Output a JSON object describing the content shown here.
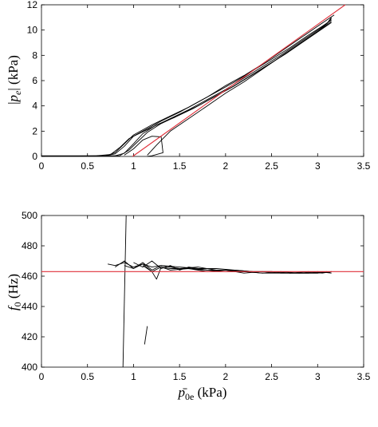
{
  "chart_data": [
    {
      "type": "line",
      "xlabel": "",
      "ylabel": "|p_e| (kPa)",
      "ylabel_parts": {
        "bar_left": "|",
        "p": "p",
        "sub": "e",
        "bar_right": "|",
        "unit": " (kPa)"
      },
      "xlim": [
        0,
        3.5
      ],
      "ylim": [
        0,
        12
      ],
      "x_ticks": [
        "0",
        "0.5",
        "1",
        "1.5",
        "2",
        "2.5",
        "3",
        "3.5"
      ],
      "y_ticks": [
        "0",
        "2",
        "4",
        "6",
        "8",
        "10",
        "12"
      ],
      "grid": false,
      "fit_line": {
        "color": "#e0303a",
        "points": [
          [
            0.99,
            0
          ],
          [
            3.3,
            12
          ]
        ]
      },
      "series_color": "#000000",
      "series": [
        {
          "x": [
            0,
            0.3,
            0.6,
            0.75,
            0.85,
            0.95,
            1.1,
            1.3,
            1.5,
            1.7,
            1.9,
            2.1,
            2.3,
            2.5,
            2.7,
            2.9,
            3.05,
            3.15
          ],
          "y": [
            0.05,
            0.05,
            0.06,
            0.15,
            0.7,
            1.4,
            2.0,
            2.8,
            3.5,
            4.3,
            5.1,
            5.9,
            6.8,
            7.7,
            8.6,
            9.6,
            10.3,
            10.8
          ]
        },
        {
          "x": [
            0,
            0.4,
            0.7,
            0.8,
            0.9,
            1.0,
            1.2,
            1.4,
            1.6,
            1.8,
            2.0,
            2.2,
            2.4,
            2.6,
            2.8,
            3.0,
            3.1,
            3.15
          ],
          "y": [
            0.03,
            0.04,
            0.06,
            0.2,
            0.8,
            1.6,
            2.3,
            3.0,
            3.7,
            4.5,
            5.3,
            6.2,
            7.1,
            8.0,
            9.0,
            10.0,
            10.5,
            10.9
          ]
        },
        {
          "x": [
            0,
            0.5,
            0.8,
            0.9,
            1.0,
            1.1,
            1.25,
            1.45,
            1.65,
            1.85,
            2.05,
            2.25,
            2.45,
            2.65,
            2.85,
            3.05,
            3.15
          ],
          "y": [
            0.02,
            0.03,
            0.05,
            0.25,
            1.0,
            1.8,
            2.5,
            3.1,
            3.8,
            4.6,
            5.4,
            6.3,
            7.2,
            8.1,
            9.1,
            10.1,
            10.6
          ]
        },
        {
          "x": [
            0,
            0.6,
            0.85,
            0.95,
            1.05,
            1.15,
            1.3,
            1.5,
            1.7,
            1.9,
            2.1,
            2.3,
            2.5,
            2.7,
            2.9,
            3.1,
            3.15
          ],
          "y": [
            0.02,
            0.03,
            0.06,
            0.5,
            1.2,
            1.9,
            2.6,
            3.3,
            4.0,
            4.8,
            5.6,
            6.5,
            7.4,
            8.4,
            9.4,
            10.4,
            10.7
          ]
        },
        {
          "x": [
            0.9,
            1.0,
            1.1,
            1.2,
            1.3,
            1.32,
            1.2,
            1.15
          ],
          "y": [
            0.1,
            0.6,
            1.3,
            1.6,
            1.55,
            0.3,
            0.05,
            0.0
          ]
        },
        {
          "x": [
            1.15,
            1.25,
            1.4,
            1.6,
            1.8,
            2.0,
            2.2,
            2.4,
            2.6,
            2.8,
            3.0,
            3.1,
            3.15
          ],
          "y": [
            0.1,
            0.9,
            2.0,
            3.0,
            4.0,
            5.0,
            5.9,
            6.9,
            7.9,
            8.9,
            9.9,
            10.5,
            11.0
          ]
        },
        {
          "x": [
            0.7,
            0.8,
            0.9,
            1.0,
            1.2,
            1.4,
            1.6,
            1.8,
            2.0,
            2.2,
            2.4,
            2.6,
            2.8,
            3.0,
            3.1,
            3.18
          ],
          "y": [
            0.05,
            0.3,
            1.0,
            1.7,
            2.5,
            3.2,
            3.9,
            4.7,
            5.6,
            6.4,
            7.3,
            8.3,
            9.3,
            10.3,
            10.8,
            11.2
          ]
        }
      ]
    },
    {
      "type": "line",
      "xlabel": "p̄0e (kPa)",
      "xlabel_parts": {
        "p": "p",
        "bar": "̄",
        "sub": "0e",
        "unit": " (kPa)"
      },
      "ylabel": "f0 (Hz)",
      "ylabel_parts": {
        "f": "f",
        "sub": "0",
        "unit": " (Hz)"
      },
      "xlim": [
        0,
        3.5
      ],
      "ylim": [
        400,
        500
      ],
      "x_ticks": [
        "0",
        "0.5",
        "1",
        "1.5",
        "2",
        "2.5",
        "3",
        "3.5"
      ],
      "y_ticks": [
        "400",
        "420",
        "440",
        "460",
        "480",
        "500"
      ],
      "grid": false,
      "reference_line": {
        "color": "#e0303a",
        "y": 463
      },
      "series_color": "#000000",
      "series": [
        {
          "x": [
            0.72,
            0.8,
            0.9,
            1.0,
            1.1,
            1.2,
            1.3,
            1.5,
            1.7,
            1.9,
            2.1,
            2.3,
            2.5,
            2.7,
            2.9,
            3.05,
            3.15
          ],
          "y": [
            468,
            467,
            469,
            466,
            468,
            466,
            467,
            466,
            465,
            465,
            464,
            463,
            463,
            462,
            463,
            462,
            463
          ]
        },
        {
          "x": [
            0.8,
            0.9,
            1.0,
            1.1,
            1.2,
            1.3,
            1.5,
            1.7,
            1.9,
            2.1,
            2.3,
            2.5,
            2.7,
            2.9,
            3.1,
            3.15
          ],
          "y": [
            466,
            470,
            465,
            469,
            464,
            467,
            465,
            466,
            464,
            464,
            463,
            463,
            462,
            462,
            463,
            462
          ]
        },
        {
          "x": [
            0.9,
            1.0,
            1.1,
            1.2,
            1.25,
            1.3,
            1.4,
            1.6,
            1.8,
            2.0,
            2.2,
            2.4,
            2.6,
            2.8,
            3.0,
            3.15
          ],
          "y": [
            467,
            465,
            468,
            463,
            458,
            466,
            464,
            465,
            464,
            463,
            463,
            462,
            462,
            462,
            462,
            463
          ]
        },
        {
          "x": [
            1.0,
            1.1,
            1.2,
            1.3,
            1.4,
            1.5,
            1.6,
            1.8,
            2.0,
            2.2,
            2.4,
            2.6,
            2.8,
            3.0,
            3.15
          ],
          "y": [
            469,
            466,
            470,
            465,
            467,
            464,
            466,
            464,
            464,
            463,
            462,
            463,
            462,
            462,
            463
          ]
        },
        {
          "x": [
            1.1,
            1.2,
            1.3,
            1.4,
            1.6,
            1.8,
            2.0,
            2.2,
            2.4,
            2.6,
            2.8,
            3.0,
            3.15
          ],
          "y": [
            467,
            463,
            466,
            465,
            465,
            463,
            464,
            462,
            463,
            462,
            462,
            463,
            462
          ]
        },
        {
          "x": [
            0.92,
            0.885
          ],
          "y": [
            500,
            400
          ]
        },
        {
          "x": [
            1.12,
            1.15
          ],
          "y": [
            415,
            427
          ]
        }
      ]
    }
  ]
}
